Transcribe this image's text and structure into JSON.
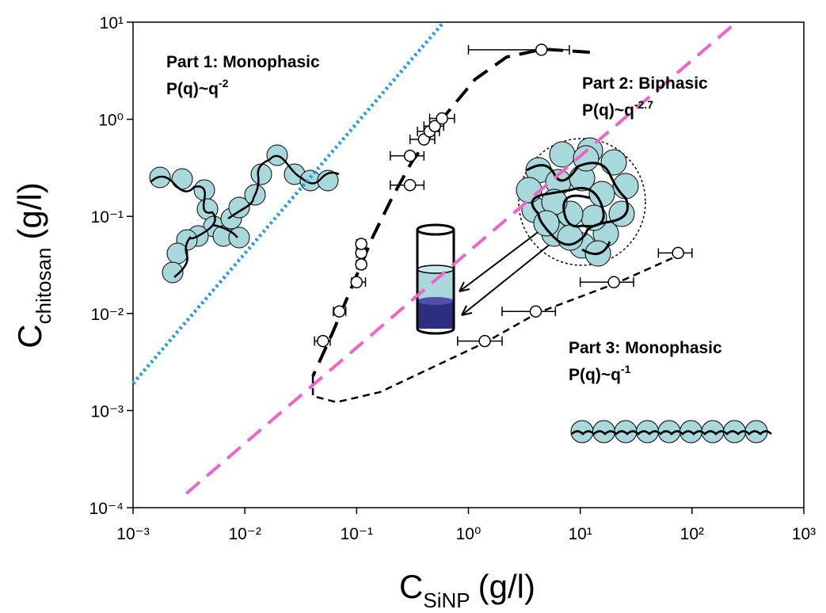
{
  "chart_data": {
    "type": "scatter",
    "xlabel": {
      "main": "C",
      "sub": "SiNP",
      "unit": "(g/l)"
    },
    "ylabel": {
      "main": "C",
      "sub": "chitosan",
      "unit": "(g/l)"
    },
    "log_x": true,
    "log_y": true,
    "xlim": [
      0.001,
      1000
    ],
    "ylim": [
      0.0001,
      10
    ],
    "xticks": [
      {
        "value": 0.001,
        "label": "10⁻³"
      },
      {
        "value": 0.01,
        "label": "10⁻²"
      },
      {
        "value": 0.1,
        "label": "10⁻¹"
      },
      {
        "value": 1,
        "label": "10⁰"
      },
      {
        "value": 10,
        "label": "10¹"
      },
      {
        "value": 100,
        "label": "10²"
      },
      {
        "value": 1000,
        "label": "10³"
      }
    ],
    "yticks": [
      {
        "value": 0.0001,
        "label": "10⁻⁴"
      },
      {
        "value": 0.001,
        "label": "10⁻³"
      },
      {
        "value": 0.01,
        "label": "10⁻²"
      },
      {
        "value": 0.1,
        "label": "10⁻¹"
      },
      {
        "value": 1,
        "label": "10⁰"
      },
      {
        "value": 10,
        "label": "10¹"
      }
    ],
    "series": [
      {
        "type": "scatter",
        "color": "#ffffff",
        "x": [
          0.05,
          0.07,
          0.1,
          0.11,
          0.11,
          0.11,
          0.3,
          0.3,
          0.4,
          0.45,
          0.5,
          0.58,
          4.5,
          1.4,
          4,
          20,
          75
        ],
        "values": [
          0.0052,
          0.0105,
          0.021,
          0.032,
          0.042,
          0.052,
          0.21,
          0.42,
          0.62,
          0.75,
          0.85,
          1.02,
          5.2,
          0.0052,
          0.0105,
          0.021,
          0.042
        ],
        "xerr_low": [
          0.042,
          0.062,
          0.09,
          0.1,
          0.1,
          0.1,
          0.2,
          0.2,
          0.3,
          0.35,
          0.4,
          0.45,
          1.0,
          0.8,
          2,
          10,
          50
        ],
        "xerr_high": [
          0.058,
          0.08,
          0.12,
          0.12,
          0.12,
          0.12,
          0.4,
          0.4,
          0.5,
          0.55,
          0.6,
          0.75,
          8,
          2,
          6,
          30,
          100
        ]
      },
      {
        "type": "line",
        "color": "#1e9be8",
        "style": "dotted",
        "x": [
          0.001,
          0.6
        ],
        "values": [
          0.0019,
          10
        ]
      },
      {
        "type": "line",
        "color": "#f064c8",
        "style": "dashed",
        "x": [
          0.003,
          250
        ],
        "values": [
          0.00014,
          10
        ]
      },
      {
        "type": "line",
        "color": "#000000",
        "style": "dashed",
        "x": [
          12.2,
          4.67,
          2.2,
          1.15,
          0.6,
          0.31,
          0.207,
          0.138,
          0.092,
          0.061,
          0.0406
        ],
        "values": [
          4.9,
          5.28,
          4.38,
          2.59,
          1.05,
          0.36,
          0.155,
          0.06,
          0.0196,
          0.00636,
          0.00226
        ]
      },
      {
        "type": "line",
        "color": "#000000",
        "style": "short-dashed",
        "x": [
          0.0406,
          0.0406,
          0.066,
          0.162,
          1.4,
          4.2,
          21,
          77
        ],
        "values": [
          0.00226,
          0.00141,
          0.00122,
          0.00155,
          0.005,
          0.0102,
          0.0205,
          0.04
        ]
      }
    ],
    "annotations": [
      {
        "title": "Part 1: Monophasic",
        "law": "P(q)~q",
        "exponent": "-2"
      },
      {
        "title": "Part 2: Biphasic",
        "law": "P(q)~q",
        "exponent": "-2.7"
      },
      {
        "title": "Part 3: Monophasic",
        "law": "P(q)~q",
        "exponent": "-1"
      }
    ]
  }
}
